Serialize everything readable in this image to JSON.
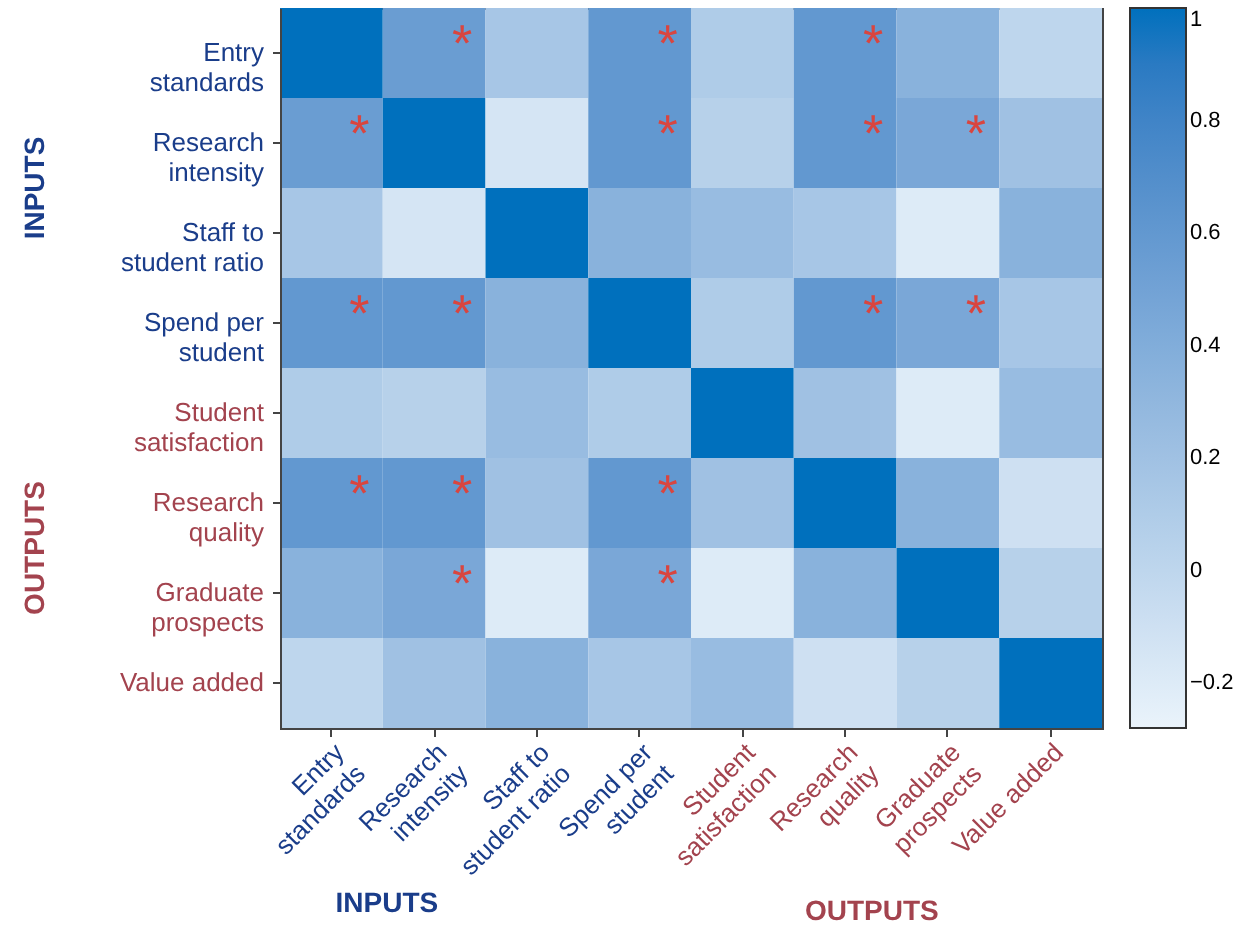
{
  "chart_data": {
    "type": "heatmap",
    "categories": [
      "Entry standards",
      "Research intensity",
      "Staff to student ratio",
      "Spend per student",
      "Student satisfaction",
      "Research quality",
      "Graduate prospects",
      "Value added"
    ],
    "y_categories": [
      "Entry standards",
      "Research intensity",
      "Staff to student ratio",
      "Spend per student",
      "Student satisfaction",
      "Research quality",
      "Graduate prospects",
      "Value added"
    ],
    "cells": [
      [
        1,
        0.55,
        0.15,
        0.6,
        0.1,
        0.6,
        0.35,
        0.0
      ],
      [
        0.55,
        1,
        -0.15,
        0.6,
        0.05,
        0.6,
        0.45,
        0.2
      ],
      [
        0.15,
        -0.15,
        1,
        0.35,
        0.25,
        0.15,
        -0.2,
        0.35
      ],
      [
        0.6,
        0.6,
        0.35,
        1,
        0.1,
        0.6,
        0.45,
        0.15
      ],
      [
        0.1,
        0.05,
        0.25,
        0.1,
        1,
        0.2,
        -0.2,
        0.25
      ],
      [
        0.6,
        0.6,
        0.2,
        0.6,
        0.2,
        1,
        0.35,
        -0.1
      ],
      [
        0.35,
        0.45,
        -0.2,
        0.45,
        -0.2,
        0.35,
        1,
        0.05
      ],
      [
        0.0,
        0.2,
        0.35,
        0.15,
        0.25,
        -0.1,
        0.05,
        1
      ]
    ],
    "cell_labels": [
      [
        null,
        "*",
        null,
        "*",
        null,
        "*",
        null,
        null
      ],
      [
        "*",
        null,
        null,
        "*",
        null,
        "*",
        "*",
        null
      ],
      [
        null,
        null,
        null,
        null,
        null,
        null,
        null,
        null
      ],
      [
        "*",
        "*",
        null,
        null,
        null,
        "*",
        "*",
        null
      ],
      [
        null,
        null,
        null,
        null,
        null,
        null,
        null,
        null
      ],
      [
        "*",
        "*",
        null,
        "*",
        null,
        null,
        null,
        null
      ],
      [
        null,
        "*",
        null,
        "*",
        null,
        null,
        null,
        null
      ],
      [
        null,
        null,
        null,
        null,
        null,
        null,
        null,
        null
      ]
    ],
    "clim": [
      -0.28,
      1
    ],
    "cticks": [
      -0.2,
      0,
      0.2,
      0.4,
      0.6,
      0.8,
      1
    ],
    "annotations": [
      "INPUTS",
      "OUTPUTS",
      "INPUTS",
      "OUTPUTS"
    ]
  }
}
